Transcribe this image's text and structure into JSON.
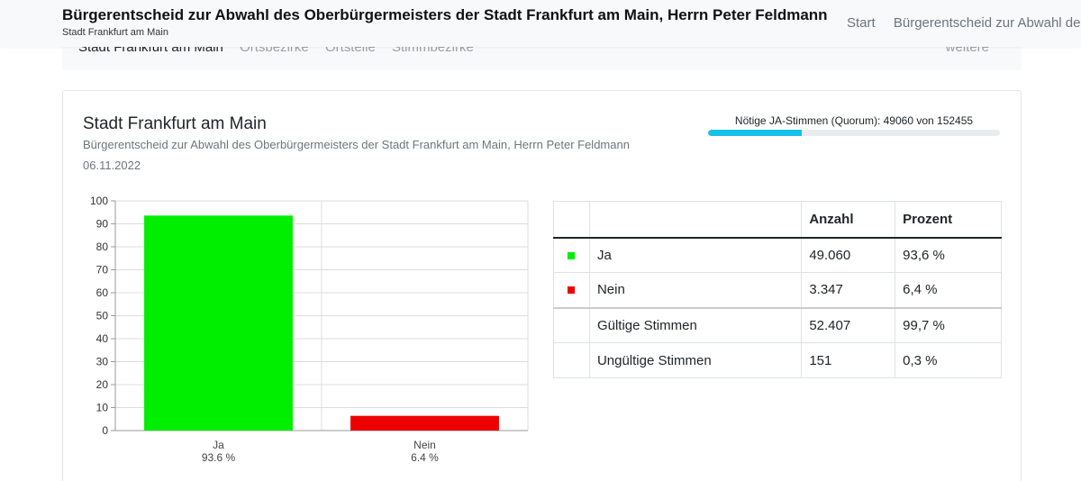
{
  "header": {
    "title": "Bürgerentscheid zur Abwahl des Oberbürgermeisters der Stadt Frankfurt am Main, Herrn Peter Feldmann",
    "subtitle": "Stadt Frankfurt am Main",
    "nav": [
      "Start",
      "Bürgerentscheid zur Abwahl des"
    ]
  },
  "subnav": {
    "tabs": [
      "Stadt Frankfurt am Main",
      "Ortsbezirke",
      "Ortsteile",
      "Stimmbezirke"
    ],
    "more": "weitere"
  },
  "card": {
    "title": "Stadt Frankfurt am Main",
    "description": "Bürgerentscheid zur Abwahl des Oberbürgermeisters der Stadt Frankfurt am Main, Herrn Peter Feldmann",
    "date": "06.11.2022"
  },
  "quorum": {
    "label": "Nötige JA-Stimmen (Quorum): 49060 von 152455",
    "progress_fraction": 0.32,
    "color": "#17c0e8"
  },
  "table": {
    "headers": [
      "",
      "",
      "Anzahl",
      "Prozent"
    ],
    "rows": [
      {
        "name": "Ja",
        "count": "49.060",
        "percent": "93,6 %",
        "color": "#00ee00"
      },
      {
        "name": "Nein",
        "count": "3.347",
        "percent": "6,4 %",
        "color": "#ee0000"
      },
      {
        "name": "Gültige Stimmen",
        "count": "52.407",
        "percent": "99,7 %",
        "color": ""
      },
      {
        "name": "Ungültige Stimmen",
        "count": "151",
        "percent": "0,3 %",
        "color": ""
      }
    ]
  },
  "chart_data": {
    "type": "bar",
    "categories": [
      "Ja",
      "Nein"
    ],
    "values": [
      93.6,
      6.4
    ],
    "data_labels": [
      "93.6 %",
      "6.4 %"
    ],
    "colors": [
      "#00ee00",
      "#ee0000"
    ],
    "ylim": [
      0,
      100
    ],
    "yticks": [
      0,
      10,
      20,
      30,
      40,
      50,
      60,
      70,
      80,
      90,
      100
    ],
    "grid": true
  }
}
